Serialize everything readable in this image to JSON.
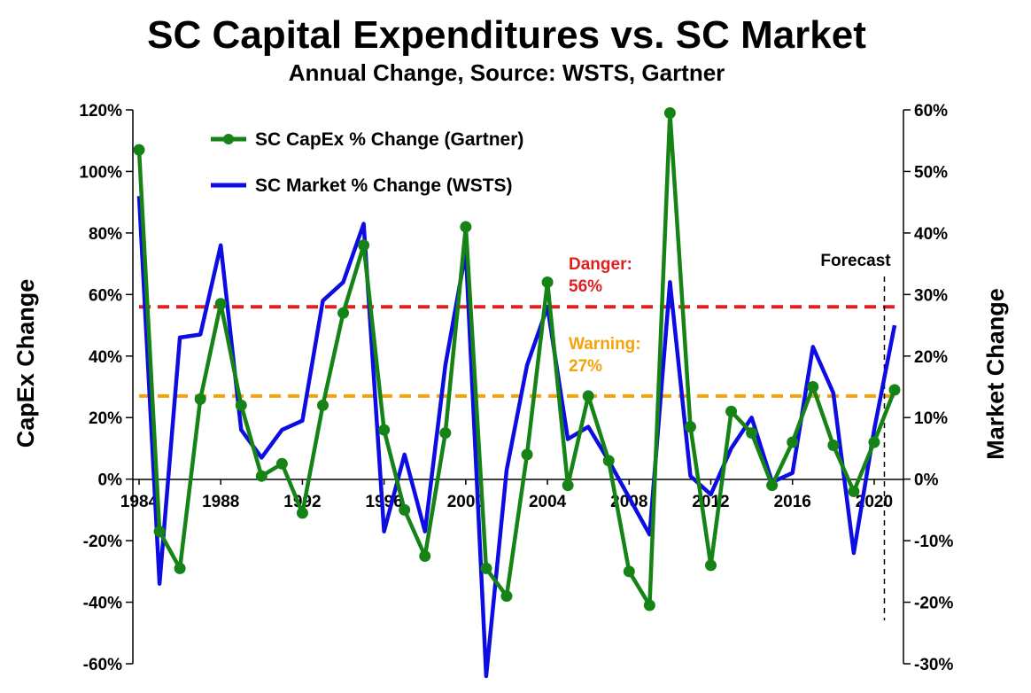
{
  "chart_data": {
    "type": "line",
    "title": "SC Capital Expenditures vs. SC Market",
    "subtitle": "Annual Change, Source: WSTS, Gartner",
    "ylabel_left": "CapEx Change",
    "ylabel_right": "Market Change",
    "x": [
      1984,
      1985,
      1986,
      1987,
      1988,
      1989,
      1990,
      1991,
      1992,
      1993,
      1994,
      1995,
      1996,
      1997,
      1998,
      1999,
      2000,
      2001,
      2002,
      2003,
      2004,
      2005,
      2006,
      2007,
      2008,
      2009,
      2010,
      2011,
      2012,
      2013,
      2014,
      2015,
      2016,
      2017,
      2018,
      2019,
      2020,
      2021
    ],
    "x_tick_labels": [
      "1984",
      "1988",
      "1992",
      "1996",
      "2000",
      "2004",
      "2008",
      "2012",
      "2016",
      "2020"
    ],
    "x_tick_values": [
      1984,
      1988,
      1992,
      1996,
      2000,
      2004,
      2008,
      2012,
      2016,
      2020
    ],
    "ylim_left": [
      -60,
      120
    ],
    "ylim_right": [
      -30,
      60
    ],
    "yticks_left": [
      "120%",
      "100%",
      "80%",
      "60%",
      "40%",
      "20%",
      "0%",
      "-20%",
      "-40%",
      "-60%"
    ],
    "yticks_left_values": [
      120,
      100,
      80,
      60,
      40,
      20,
      0,
      -20,
      -40,
      -60
    ],
    "yticks_right": [
      "60%",
      "50%",
      "40%",
      "30%",
      "20%",
      "10%",
      "0%",
      "-10%",
      "-20%",
      "-30%"
    ],
    "yticks_right_values": [
      60,
      50,
      40,
      30,
      20,
      10,
      0,
      -10,
      -20,
      -30
    ],
    "series": [
      {
        "name": "SC CapEx % Change (Gartner)",
        "axis": "left",
        "color": "#168316",
        "marker": "circle",
        "values": [
          107,
          -17,
          -29,
          26,
          57,
          24,
          1,
          5,
          -11,
          24,
          54,
          76,
          16,
          -10,
          -25,
          15,
          82,
          -29,
          -38,
          8,
          64,
          -2,
          27,
          6,
          -30,
          -41,
          119,
          17,
          -28,
          22,
          15,
          -2,
          12,
          30,
          11,
          -4,
          12,
          29
        ]
      },
      {
        "name": "SC Market % Change (WSTS)",
        "axis": "right",
        "color": "#0d0de3",
        "marker": "none",
        "values": [
          46,
          -17,
          23,
          23.5,
          38,
          8,
          3.5,
          8,
          9.5,
          29,
          32,
          41.5,
          -8.5,
          4,
          -8.5,
          18.5,
          37,
          -32,
          1.5,
          18.5,
          28,
          6.5,
          8.5,
          3,
          -3,
          -9,
          32,
          0.5,
          -2.5,
          5,
          10,
          -0.5,
          1,
          21.5,
          14,
          -12,
          8,
          25
        ]
      }
    ],
    "thresholds": [
      {
        "label_line1": "Danger:",
        "label_line2": "56%",
        "value": 56,
        "color": "#e02020"
      },
      {
        "label_line1": "Warning:",
        "label_line2": "27%",
        "value": 27,
        "color": "#f5a30a"
      }
    ],
    "forecast": {
      "label": "Forecast",
      "x": 2020.5
    },
    "legend_position": "top-left",
    "grid": false
  }
}
